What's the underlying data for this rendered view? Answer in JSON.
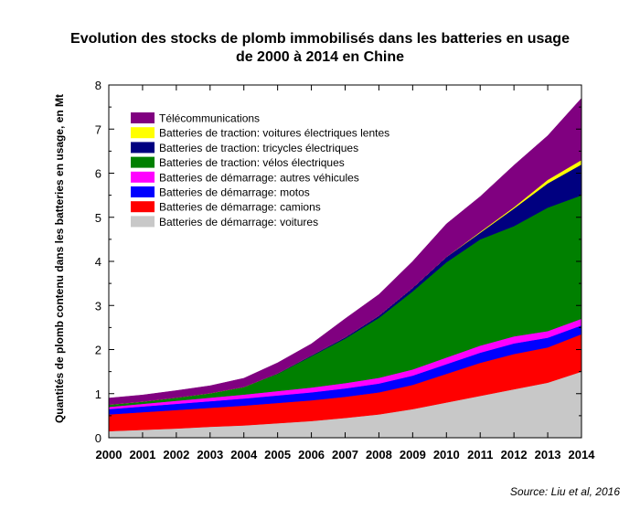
{
  "title_line1": "Evolution  des stocks de plomb immobilisés  dans les batteries  en usage",
  "title_line2": "de 2000 à 2014 en Chine",
  "source": "Source: Liu et al, 2016",
  "chart_data": {
    "type": "area",
    "stacked": true,
    "ylabel": "Quantités de plomb contenu dans les batteries en usage, en Mt",
    "xlabel": "",
    "ylim": [
      0,
      8
    ],
    "y_ticks": [
      0,
      1,
      2,
      3,
      4,
      5,
      6,
      7,
      8
    ],
    "x": [
      2000,
      2001,
      2002,
      2003,
      2004,
      2005,
      2006,
      2007,
      2008,
      2009,
      2010,
      2011,
      2012,
      2013,
      2014
    ],
    "legend_position": "top-left",
    "series": [
      {
        "name": "Batteries de démarrage: voitures",
        "color": "#c8c8c8",
        "values": [
          0.15,
          0.18,
          0.21,
          0.25,
          0.28,
          0.33,
          0.38,
          0.45,
          0.53,
          0.65,
          0.8,
          0.95,
          1.1,
          1.25,
          1.5
        ]
      },
      {
        "name": "Batteries de démarrage: camions",
        "color": "#ff0000",
        "values": [
          0.38,
          0.4,
          0.42,
          0.43,
          0.45,
          0.46,
          0.47,
          0.48,
          0.5,
          0.55,
          0.65,
          0.75,
          0.8,
          0.8,
          0.85
        ]
      },
      {
        "name": "Batteries de démarrage: motos",
        "color": "#0000ff",
        "values": [
          0.12,
          0.13,
          0.14,
          0.15,
          0.16,
          0.17,
          0.18,
          0.19,
          0.2,
          0.21,
          0.22,
          0.23,
          0.24,
          0.22,
          0.2
        ]
      },
      {
        "name": "Batteries de démarrage: autres véhicules",
        "color": "#ff00ff",
        "values": [
          0.05,
          0.06,
          0.07,
          0.08,
          0.09,
          0.1,
          0.11,
          0.12,
          0.13,
          0.14,
          0.15,
          0.16,
          0.16,
          0.15,
          0.15
        ]
      },
      {
        "name": "Batteries de traction: vélos électriques",
        "color": "#008000",
        "values": [
          0.05,
          0.05,
          0.07,
          0.1,
          0.17,
          0.39,
          0.71,
          1.01,
          1.36,
          1.77,
          2.16,
          2.41,
          2.5,
          2.8,
          2.8
        ]
      },
      {
        "name": "Batteries de traction: tricycles électriques",
        "color": "#000080",
        "values": [
          0.0,
          0.0,
          0.0,
          0.0,
          0.0,
          0.01,
          0.02,
          0.03,
          0.05,
          0.08,
          0.12,
          0.15,
          0.4,
          0.55,
          0.7
        ]
      },
      {
        "name": "Batteries de traction: voitures électriques lentes",
        "color": "#ffff00",
        "values": [
          0.0,
          0.0,
          0.0,
          0.0,
          0.0,
          0.0,
          0.0,
          0.0,
          0.0,
          0.0,
          0.0,
          0.02,
          0.03,
          0.08,
          0.1
        ]
      },
      {
        "name": "Télécommunications",
        "color": "#800080",
        "values": [
          0.15,
          0.15,
          0.16,
          0.17,
          0.2,
          0.24,
          0.26,
          0.42,
          0.48,
          0.6,
          0.75,
          0.8,
          0.95,
          1.0,
          1.4
        ]
      }
    ]
  }
}
